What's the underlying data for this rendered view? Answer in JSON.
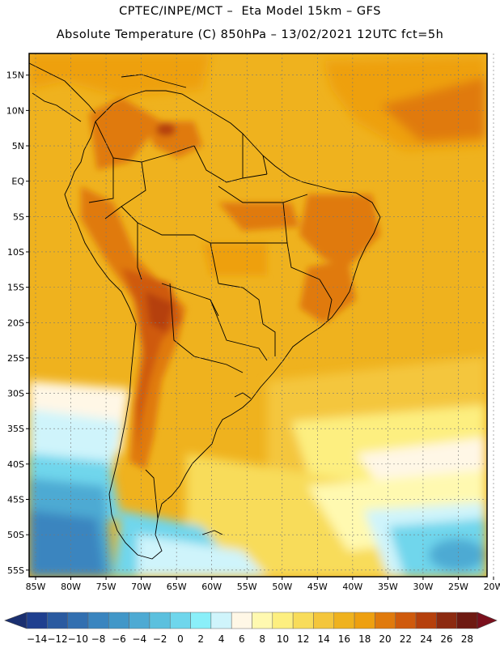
{
  "header": {
    "title_line1": "CPTEC/INPE/MCT –  Eta Model 15km – GFS",
    "title_line2": "Absolute Temperature (C) 850hPa – 13/02/2021 12UTC fct=5h"
  },
  "map": {
    "lat_labels": [
      "15N",
      "10N",
      "5N",
      "EQ",
      "5S",
      "10S",
      "15S",
      "20S",
      "25S",
      "30S",
      "35S",
      "40S",
      "45S",
      "50S",
      "55S"
    ],
    "lat_values": [
      15,
      10,
      5,
      0,
      -5,
      -10,
      -15,
      -20,
      -25,
      -30,
      -35,
      -40,
      -45,
      -50,
      -55
    ],
    "lon_labels": [
      "85W",
      "80W",
      "75W",
      "70W",
      "65W",
      "60W",
      "55W",
      "50W",
      "45W",
      "40W",
      "35W",
      "30W",
      "25W",
      "20W"
    ],
    "lon_values": [
      -85,
      -80,
      -75,
      -70,
      -65,
      -60,
      -55,
      -50,
      -45,
      -40,
      -35,
      -30,
      -25,
      -20
    ],
    "extent": {
      "lon_min": -85,
      "lon_max": -20,
      "lat_min": -58,
      "lat_max": 16
    },
    "gridlines": "dashed"
  },
  "colorbar": {
    "labels": [
      "-14",
      "-12",
      "-10",
      "-8",
      "-6",
      "-4",
      "-2",
      "0",
      "2",
      "4",
      "6",
      "8",
      "10",
      "12",
      "14",
      "16",
      "18",
      "20",
      "22",
      "24",
      "26",
      "28"
    ],
    "colors": [
      "#1f3f8f",
      "#2a5aa0",
      "#326fb0",
      "#3a85bf",
      "#4297c8",
      "#4eaad3",
      "#5bc0de",
      "#6fd6ec",
      "#8aeff9",
      "#cff4fb",
      "#fff7e6",
      "#fff9b0",
      "#fdef80",
      "#f8dc5a",
      "#f4c63c",
      "#efb21e",
      "#eea010",
      "#e07a0c",
      "#cf5a0c",
      "#b5400c",
      "#8c2a10",
      "#6e1a12"
    ],
    "under_color": "#1a2f70",
    "over_color": "#7a0f1c"
  }
}
